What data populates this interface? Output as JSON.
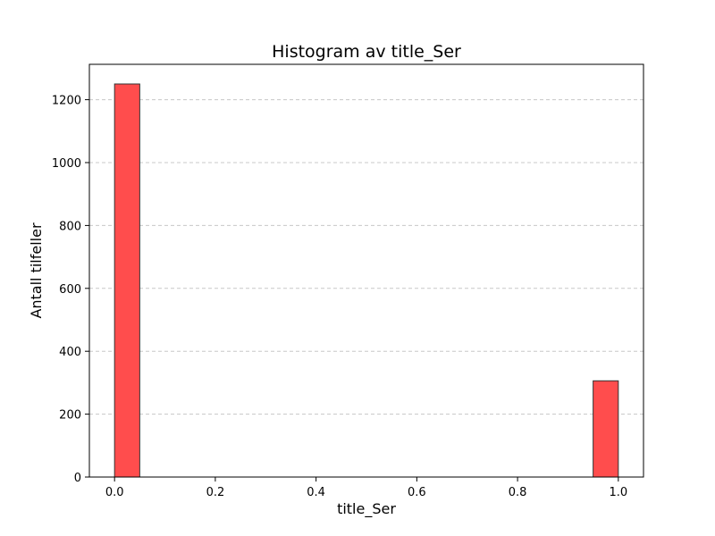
{
  "chart_data": {
    "type": "bar",
    "title": "Histogram av title_Ser",
    "xlabel": "title_Ser",
    "ylabel": "Antall tilfeller",
    "xlim": [
      -0.05,
      1.05
    ],
    "ylim": [
      0,
      1312.5
    ],
    "xticks": [
      0.0,
      0.2,
      0.4,
      0.6,
      0.8,
      1.0
    ],
    "xtick_labels": [
      "0.0",
      "0.2",
      "0.4",
      "0.6",
      "0.8",
      "1.0"
    ],
    "yticks": [
      0,
      200,
      400,
      600,
      800,
      1000,
      1200
    ],
    "ytick_labels": [
      "0",
      "200",
      "400",
      "600",
      "800",
      "1000",
      "1200"
    ],
    "grid": "y-dashed",
    "bins": [
      {
        "x0": 0.0,
        "x1": 0.05,
        "count": 1250
      },
      {
        "x0": 0.95,
        "x1": 1.0,
        "count": 306
      }
    ],
    "colors": {
      "bar_fill": "#ff4d4d",
      "bar_edge": "#333333",
      "grid": "#c8c8c8"
    }
  }
}
